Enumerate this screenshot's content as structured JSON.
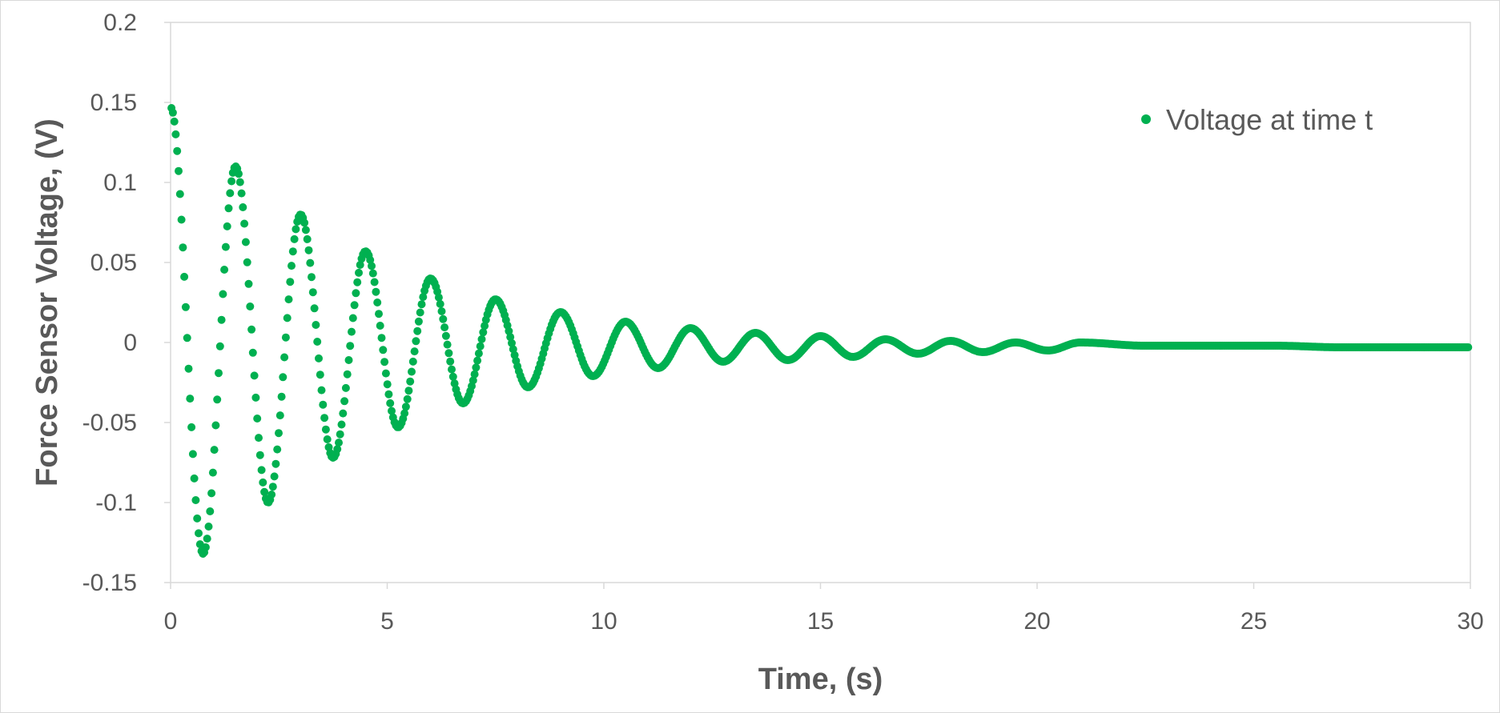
{
  "chart_data": {
    "type": "scatter",
    "title": "",
    "xlabel": "Time, (s)",
    "ylabel": "Force Sensor Voltage, (V)",
    "xlim": [
      0,
      30
    ],
    "ylim": [
      -0.15,
      0.2
    ],
    "x_ticks": [
      0,
      5,
      10,
      15,
      20,
      25,
      30
    ],
    "x_tick_labels": [
      "0",
      "5",
      "10",
      "15",
      "20",
      "25",
      "30"
    ],
    "y_ticks": [
      0.2,
      0.15,
      0.1,
      0.05,
      0,
      -0.05,
      -0.1,
      -0.15
    ],
    "y_tick_labels": [
      "0.2",
      "0.15",
      "0.1",
      "0.05",
      "0",
      "-0.05",
      "-0.1",
      "-0.15"
    ],
    "grid": false,
    "legend_position": "top-right",
    "marker_color": "#00b050",
    "series": [
      {
        "name": "Voltage at time t",
        "description": "Damped oscillation sampled at constant rate; period ~1.5 s, decaying from ~0.147 V to ~0 V",
        "x": [
          0,
          0.75,
          1.5,
          2.25,
          3.0,
          3.75,
          4.5,
          5.25,
          6.0,
          6.75,
          7.5,
          8.25,
          9.0,
          9.75,
          10.5,
          11.25,
          12.0,
          12.75,
          13.5,
          14.25,
          15.0,
          15.75,
          16.5,
          17.25,
          18.0,
          18.75,
          19.5,
          20.25,
          21.0,
          22.5,
          24.0,
          25.5,
          27.0,
          28.5,
          30.0
        ],
        "y": [
          0.147,
          -0.132,
          0.11,
          -0.1,
          0.08,
          -0.072,
          0.057,
          -0.053,
          0.04,
          -0.038,
          0.027,
          -0.028,
          0.019,
          -0.021,
          0.013,
          -0.016,
          0.009,
          -0.012,
          0.006,
          -0.011,
          0.004,
          -0.009,
          0.002,
          -0.007,
          0.001,
          -0.006,
          0.0,
          -0.005,
          0.0,
          -0.002,
          -0.002,
          -0.002,
          -0.003,
          -0.003,
          -0.003
        ]
      }
    ]
  }
}
